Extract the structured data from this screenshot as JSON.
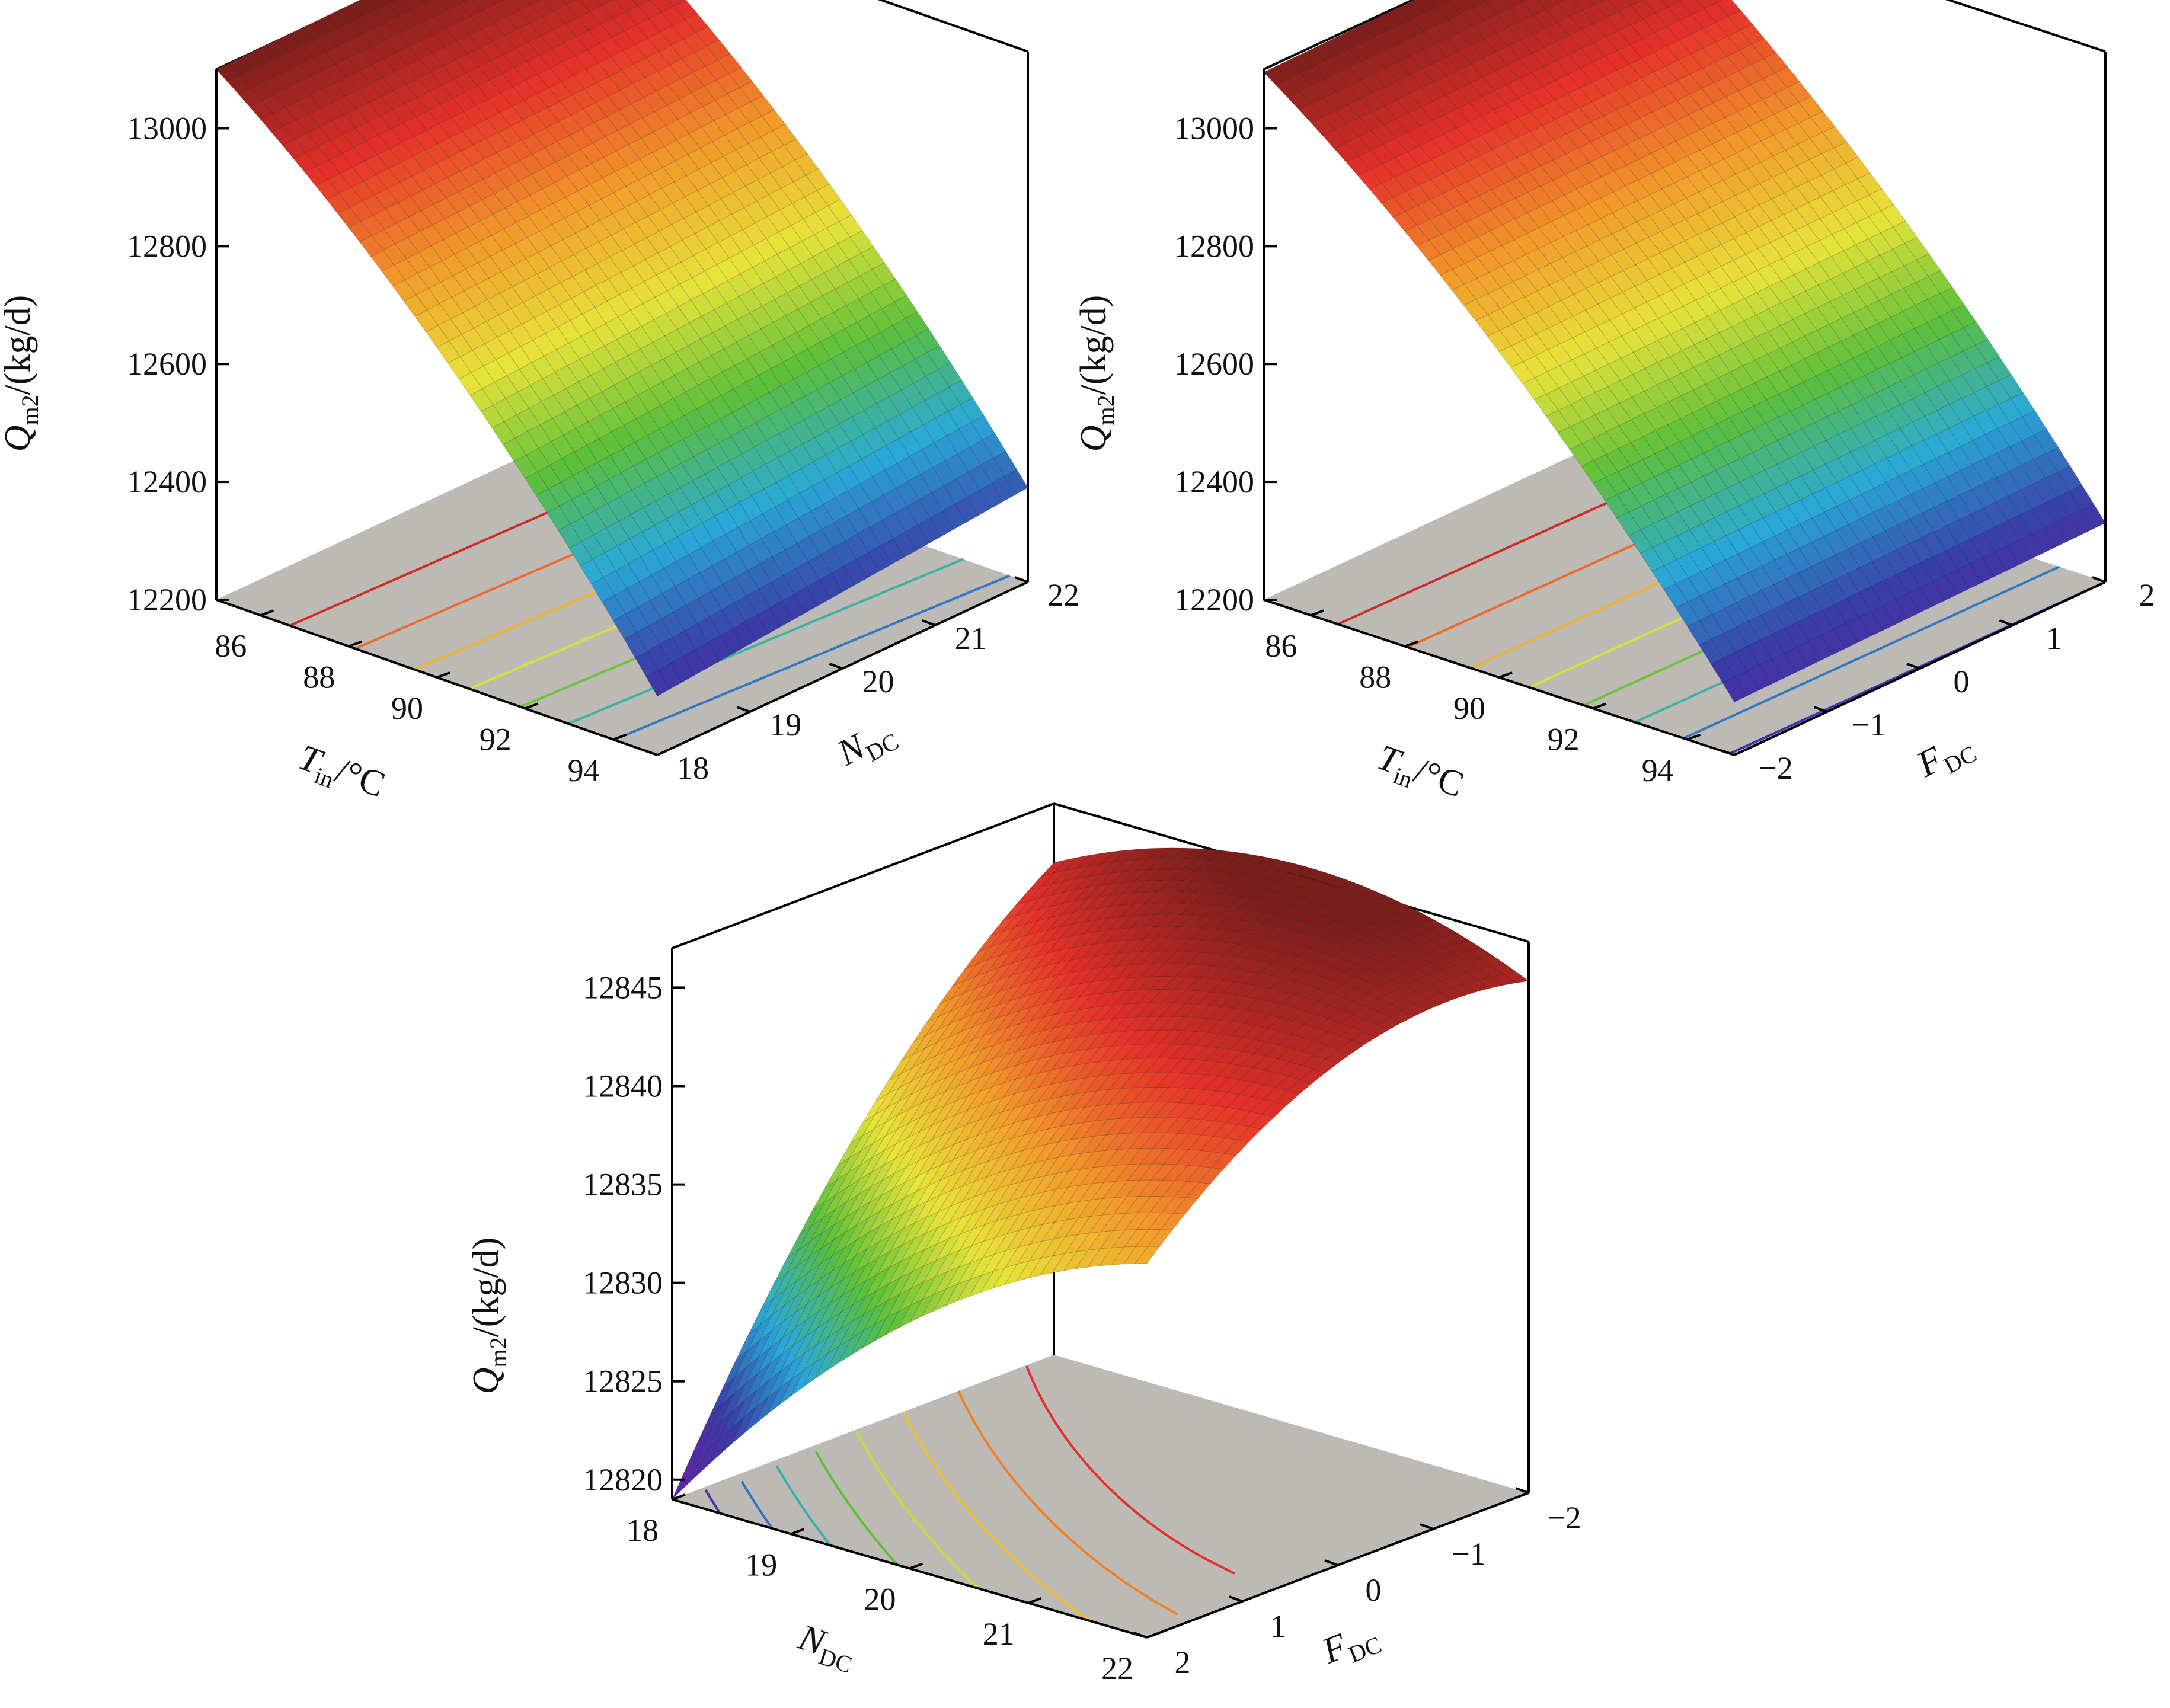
{
  "chart_data": [
    {
      "type": "surface3d",
      "title": "",
      "x_axis": {
        "label_main": "T",
        "label_sub": "in",
        "label_unit": "/°C",
        "ticks": [
          86,
          88,
          90,
          92,
          94
        ],
        "range": [
          85,
          95
        ]
      },
      "y_axis": {
        "label_main": "N",
        "label_sub": "DC",
        "label_unit": "",
        "ticks": [
          18,
          19,
          20,
          21,
          22
        ],
        "range": [
          18,
          22
        ]
      },
      "z_axis": {
        "label_main": "Q",
        "label_sub": "m2",
        "label_unit": "/(kg/d)",
        "ticks": [
          12200,
          12400,
          12600,
          12800,
          13000
        ],
        "range": [
          12200,
          13100
        ]
      },
      "surface": {
        "x_range": [
          85,
          95
        ],
        "y_range": [
          18,
          22
        ],
        "z_corners": {
          "x_min_y_min": 13100,
          "x_min_y_max": 13110,
          "x_max_y_min": 12300,
          "x_max_y_max": 12360
        }
      },
      "contour_levels": [
        12300,
        12400,
        12500,
        12600,
        12700,
        12800,
        12900,
        13000
      ],
      "colormap": [
        "#6a1ea8",
        "#3a3aa6",
        "#2aa9d8",
        "#5cbf3a",
        "#e8e43a",
        "#f29a2a",
        "#e5302a",
        "#7a1e1c"
      ]
    },
    {
      "type": "surface3d",
      "title": "",
      "x_axis": {
        "label_main": "T",
        "label_sub": "in",
        "label_unit": "/°C",
        "ticks": [
          86,
          88,
          90,
          92,
          94
        ],
        "range": [
          85,
          95
        ]
      },
      "y_axis": {
        "label_main": "F",
        "label_sub": "DC",
        "label_unit": "",
        "ticks": [
          -2,
          -1,
          0,
          1,
          2
        ],
        "tick_labels": [
          "−2",
          "−1",
          "0",
          "1",
          "2"
        ],
        "range": [
          -2,
          2
        ]
      },
      "z_axis": {
        "label_main": "Q",
        "label_sub": "m2",
        "label_unit": "/(kg/d)",
        "ticks": [
          12200,
          12400,
          12600,
          12800,
          13000
        ],
        "range": [
          12200,
          13100
        ]
      },
      "surface": {
        "x_range": [
          85,
          95
        ],
        "y_range": [
          -2,
          2
        ],
        "z_corners": {
          "x_min_y_min": 13095,
          "x_min_y_max": 13105,
          "x_max_y_min": 12290,
          "x_max_y_max": 12300
        }
      },
      "contour_levels": [
        12300,
        12400,
        12500,
        12600,
        12700,
        12800,
        12900,
        13000
      ],
      "colormap": [
        "#6a1ea8",
        "#3a3aa6",
        "#2aa9d8",
        "#5cbf3a",
        "#e8e43a",
        "#f29a2a",
        "#e5302a",
        "#7a1e1c"
      ]
    },
    {
      "type": "surface3d",
      "title": "",
      "x_axis": {
        "label_main": "N",
        "label_sub": "DC",
        "label_unit": "",
        "ticks": [
          18,
          19,
          20,
          21,
          22
        ],
        "range": [
          18,
          22
        ]
      },
      "y_axis": {
        "label_main": "F",
        "label_sub": "DC",
        "label_unit": "",
        "ticks": [
          2,
          1,
          0,
          -1,
          -2
        ],
        "tick_labels": [
          "2",
          "1",
          "0",
          "−1",
          "−2"
        ],
        "range": [
          2,
          -2
        ]
      },
      "z_axis": {
        "label_main": "Q",
        "label_sub": "m2",
        "label_unit": "/(kg/d)",
        "ticks": [
          12820,
          12825,
          12830,
          12835,
          12840,
          12845
        ],
        "range": [
          12819,
          12847
        ]
      },
      "surface": {
        "x_range": [
          18,
          22
        ],
        "y_range": [
          2,
          -2
        ],
        "z_corners": {
          "x_min_y_min": 12819,
          "x_min_y_max": 12844,
          "x_max_y_min": 12838,
          "x_max_y_max": 12845
        }
      },
      "contour_levels": [
        12822,
        12825,
        12828,
        12831,
        12834,
        12837,
        12840,
        12843
      ],
      "colormap": [
        "#6a1ea8",
        "#3a3aa6",
        "#2aa9d8",
        "#5cbf3a",
        "#e8e43a",
        "#f29a2a",
        "#e5302a",
        "#7a1e1c"
      ]
    }
  ]
}
